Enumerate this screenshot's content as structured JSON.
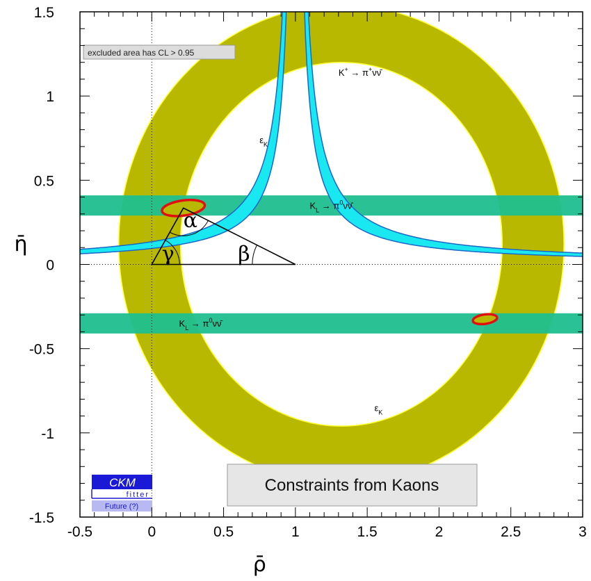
{
  "chart_data": {
    "type": "scatter",
    "title": "Constraints from Kaons",
    "xlabel": "ρ̄",
    "ylabel": "η̄",
    "xlim": [
      -0.5,
      3
    ],
    "ylim": [
      -1.5,
      1.5
    ],
    "x_ticks": [
      "-0.5",
      "0",
      "0.5",
      "1",
      "1.5",
      "2",
      "2.5",
      "3"
    ],
    "x_tick_values": [
      -0.5,
      0,
      0.5,
      1,
      1.5,
      2,
      2.5,
      3
    ],
    "y_ticks": [
      "1.5",
      "1",
      "0.5",
      "0",
      "-0.5",
      "-1",
      "-1.5"
    ],
    "y_tick_values": [
      1.5,
      1,
      0.5,
      0,
      -0.5,
      -1,
      -1.5
    ],
    "grid": false,
    "reference_lines": {
      "x": 0,
      "y": 0,
      "style": "dotted"
    },
    "note": "excluded area has CL > 0.95",
    "regions": [
      {
        "label": "K⁺ → π⁺νν̄",
        "color": "#b8b800",
        "shape": "ring",
        "center": [
          1.32,
          0.12
        ],
        "inner_radius": [
          1.12,
          1.08
        ],
        "outer_radius": [
          1.55,
          1.42
        ]
      },
      {
        "label": "KL → π⁰νν̄",
        "color": "#1fbf8f",
        "shape": "band",
        "y_range": [
          0.29,
          0.41
        ]
      },
      {
        "label": "KL → π⁰νν̄",
        "color": "#1fbf8f",
        "shape": "band",
        "y_range": [
          -0.41,
          -0.29
        ]
      },
      {
        "label": "εK",
        "color": "#1ae8f0",
        "shape": "hyperbola",
        "k_values": [
          0.095,
          0.135
        ],
        "branch": "upper"
      },
      {
        "label": "εK",
        "color": "#1ae8f0",
        "shape": "hyperbola",
        "k_values": [
          -0.095,
          -0.135
        ],
        "branch": "lower"
      }
    ],
    "solutions": [
      {
        "center": [
          0.22,
          0.335
        ],
        "rx": 0.15,
        "ry": 0.045,
        "color": "#e01010"
      },
      {
        "center": [
          2.32,
          -0.325
        ],
        "rx": 0.085,
        "ry": 0.028,
        "color": "#e01010"
      }
    ],
    "triangle": {
      "vertices": [
        [
          0,
          0
        ],
        [
          1,
          0
        ],
        [
          0.22,
          0.335
        ]
      ],
      "angle_labels": {
        "alpha": "α",
        "beta": "β",
        "gamma": "γ"
      }
    },
    "annotations": [
      {
        "text_main": "K",
        "sup1": "+",
        "arrow": " → ",
        "text2": "π",
        "sup2": "+",
        "tail": "νν̄",
        "x": 1.3,
        "y": 1.12
      },
      {
        "text_main": "ε",
        "sub1": "K",
        "x": 0.75,
        "y": 0.72
      },
      {
        "text_main": "K",
        "sub1": "L",
        "arrow": " → ",
        "text2": "π",
        "sup2": "0",
        "tail": "νν̄",
        "x": 1.1,
        "y": 0.33
      },
      {
        "text_main": "K",
        "sub1": "L",
        "arrow": " → ",
        "text2": "π",
        "sup2": "0",
        "tail": "νν̄",
        "x": 0.19,
        "y": -0.37
      },
      {
        "text_main": "ε",
        "sub1": "K",
        "x": 1.55,
        "y": -0.87
      }
    ]
  },
  "logo": {
    "top": "CKM",
    "middle": "fitter",
    "bottom": "Future (?)"
  },
  "colors": {
    "ring": "#b8b800",
    "ring_edge": "#ffff30",
    "band": "#1fbf8f",
    "eps": "#1ae8f0",
    "eps_edge": "#1a66c8",
    "solution": "#e01010",
    "solution_fill": "#b8b800",
    "logo_blue": "#1a1ad6",
    "logo_light": "#b9b9f2"
  }
}
